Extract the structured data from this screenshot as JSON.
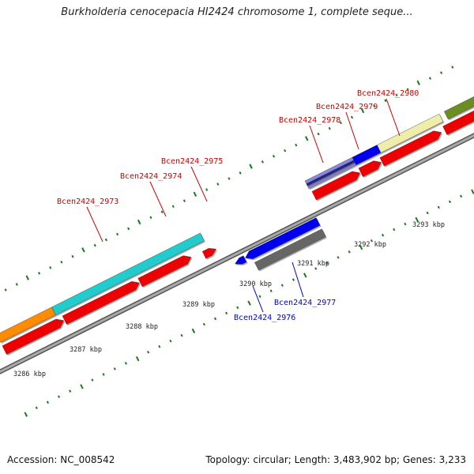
{
  "title": "Burkholderia cenocepacia HI2424 chromosome 1, complete seque...",
  "footer": {
    "accession": "Accession: NC_008542",
    "summary": "Topology: circular; Length: 3,483,902 bp; Genes: 3,233"
  },
  "colors": {
    "backbone": "#888888",
    "tick": "#1a7a1a",
    "label_forward": "#cc0000",
    "label_reverse": "#0000cc",
    "red": "#ee0000",
    "blue": "#0000ee",
    "cyan": "#22cccc",
    "orange": "#ff8c00",
    "gray": "#666666",
    "khaki": "#eeeeaa",
    "olive": "#6b8e23",
    "lavender": "#8888dd"
  },
  "axis": {
    "ticks": [
      {
        "label": "3286 kbp"
      },
      {
        "label": "3287 kbp"
      },
      {
        "label": "3288 kbp"
      },
      {
        "label": "3289 kbp"
      },
      {
        "label": "3290 kbp"
      },
      {
        "label": "3291 kbp"
      },
      {
        "label": "3292 kbp"
      },
      {
        "label": "3293 kbp"
      }
    ]
  },
  "gene_labels": [
    {
      "name": "Bcen2424_2973",
      "strand": "forward"
    },
    {
      "name": "Bcen2424_2974",
      "strand": "forward"
    },
    {
      "name": "Bcen2424_2975",
      "strand": "forward"
    },
    {
      "name": "Bcen2424_2976",
      "strand": "reverse"
    },
    {
      "name": "Bcen2424_2977",
      "strand": "reverse"
    },
    {
      "name": "Bcen2424_2978",
      "strand": "forward"
    },
    {
      "name": "Bcen2424_2979",
      "strand": "forward"
    },
    {
      "name": "Bcen2424_2980",
      "strand": "forward"
    }
  ]
}
